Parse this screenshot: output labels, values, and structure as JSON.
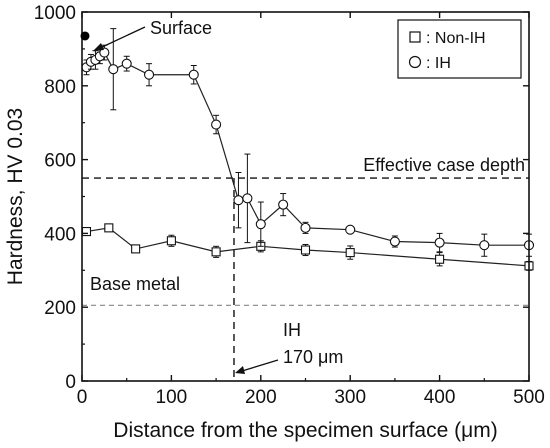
{
  "chart_data": {
    "type": "line",
    "xlabel": "Distance from the specimen surface (μm)",
    "ylabel": "Hardness, HV 0.03",
    "xlim": [
      0,
      500
    ],
    "ylim": [
      0,
      1000
    ],
    "x_ticks": [
      0,
      100,
      200,
      300,
      400,
      500
    ],
    "y_ticks": [
      0,
      200,
      400,
      600,
      800,
      1000
    ],
    "grid": false,
    "legend_position": "top-right",
    "series": [
      {
        "name": ": Non-IH",
        "marker": "square",
        "color": "#222222",
        "points": [
          {
            "x": 5,
            "y": 405,
            "err": 8
          },
          {
            "x": 30,
            "y": 415,
            "err": 8
          },
          {
            "x": 60,
            "y": 358,
            "err": 8
          },
          {
            "x": 100,
            "y": 380,
            "err": 15
          },
          {
            "x": 150,
            "y": 350,
            "err": 15
          },
          {
            "x": 200,
            "y": 365,
            "err": 15
          },
          {
            "x": 250,
            "y": 355,
            "err": 15
          },
          {
            "x": 300,
            "y": 348,
            "err": 18
          },
          {
            "x": 400,
            "y": 330,
            "err": 18
          },
          {
            "x": 500,
            "y": 312,
            "err": 12
          }
        ]
      },
      {
        "name": ": IH",
        "marker": "circle",
        "color": "#222222",
        "points": [
          {
            "x": 5,
            "y": 850,
            "err": 20
          },
          {
            "x": 10,
            "y": 865,
            "err": 20
          },
          {
            "x": 15,
            "y": 870,
            "err": 25
          },
          {
            "x": 20,
            "y": 880,
            "err": 20
          },
          {
            "x": 25,
            "y": 890,
            "err": 20
          },
          {
            "x": 35,
            "y": 845,
            "err": 110
          },
          {
            "x": 50,
            "y": 860,
            "err": 20
          },
          {
            "x": 75,
            "y": 830,
            "err": 30
          },
          {
            "x": 125,
            "y": 830,
            "err": 25
          },
          {
            "x": 150,
            "y": 695,
            "err": 25
          },
          {
            "x": 175,
            "y": 490,
            "err": 75
          },
          {
            "x": 185,
            "y": 495,
            "err": 120
          },
          {
            "x": 200,
            "y": 425,
            "err": 60
          },
          {
            "x": 225,
            "y": 478,
            "err": 30
          },
          {
            "x": 250,
            "y": 415,
            "err": 15
          },
          {
            "x": 300,
            "y": 410,
            "err": 8
          },
          {
            "x": 350,
            "y": 378,
            "err": 15
          },
          {
            "x": 400,
            "y": 375,
            "err": 25
          },
          {
            "x": 450,
            "y": 368,
            "err": 30
          },
          {
            "x": 500,
            "y": 368,
            "err": 30
          }
        ]
      }
    ],
    "reference_lines": [
      {
        "orientation": "horizontal",
        "value": 550,
        "style": "dashed",
        "label": "Effective case depth"
      },
      {
        "orientation": "horizontal",
        "value": 205,
        "style": "dashed-gray",
        "label": "Base metal"
      },
      {
        "orientation": "vertical",
        "value": 170,
        "style": "dashed"
      }
    ],
    "annotations": {
      "surface": {
        "text": "Surface",
        "x": 0,
        "y": 935
      },
      "ih": {
        "text": "IH"
      },
      "depth": {
        "text": "170 μm"
      }
    }
  }
}
